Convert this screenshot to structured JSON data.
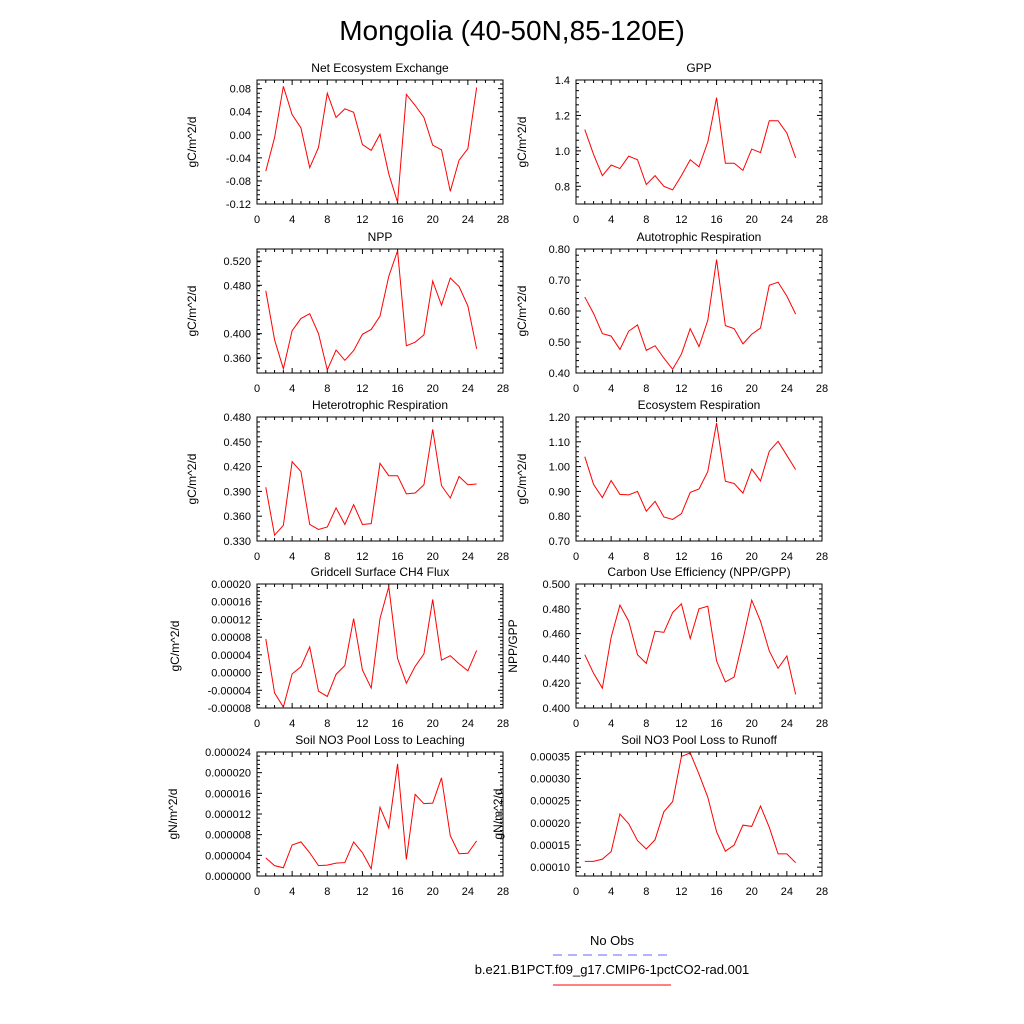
{
  "page": {
    "title": "Mongolia (40-50N,85-120E)"
  },
  "legend": {
    "items": [
      {
        "label": "No Obs",
        "color": "#6666ff",
        "dash": true
      },
      {
        "label": "b.e21.B1PCT.f09_g17.CMIP6-1pctCO2-rad.001",
        "color": "#ff0000",
        "dash": false
      }
    ]
  },
  "colors": {
    "series": "#ff0000",
    "obs": "#6666ff"
  },
  "chart_data": [
    {
      "type": "line",
      "title": "Net Ecosystem Exchange",
      "ylabel": "gC/m^2/d",
      "xlim": [
        0,
        28
      ],
      "ylim": [
        -0.12,
        0.095
      ],
      "xticks": [
        0,
        4,
        8,
        12,
        16,
        20,
        24,
        28
      ],
      "xtick_labels": [
        "0",
        "4",
        "8",
        "12",
        "16",
        "20",
        "24",
        "28"
      ],
      "yticks": [
        -0.12,
        -0.08,
        -0.04,
        0.0,
        0.04,
        0.08
      ],
      "ytick_labels": [
        "-0.12",
        "-0.08",
        "-0.04",
        "0.00",
        "0.04",
        "0.08"
      ],
      "x": [
        1,
        2,
        3,
        4,
        5,
        6,
        7,
        8,
        9,
        10,
        11,
        12,
        13,
        14,
        15,
        16,
        17,
        18,
        19,
        20,
        21,
        22,
        23,
        24,
        25
      ],
      "series": [
        {
          "values": [
            -0.063,
            -0.005,
            0.084,
            0.035,
            0.012,
            -0.057,
            -0.022,
            0.072,
            0.03,
            0.045,
            0.039,
            -0.017,
            -0.027,
            0.001,
            -0.068,
            -0.117,
            0.07,
            0.051,
            0.03,
            -0.018,
            -0.026,
            -0.098,
            -0.044,
            -0.024,
            0.082
          ]
        }
      ]
    },
    {
      "type": "line",
      "title": "GPP",
      "ylabel": "gC/m^2/d",
      "xlim": [
        0,
        28
      ],
      "ylim": [
        0.7,
        1.4
      ],
      "xticks": [
        0,
        4,
        8,
        12,
        16,
        20,
        24,
        28
      ],
      "xtick_labels": [
        "0",
        "4",
        "8",
        "12",
        "16",
        "20",
        "24",
        "28"
      ],
      "yticks": [
        0.8,
        1.0,
        1.2,
        1.4
      ],
      "ytick_labels": [
        "0.8",
        "1.0",
        "1.2",
        "1.4"
      ],
      "x": [
        1,
        2,
        3,
        4,
        5,
        6,
        7,
        8,
        9,
        10,
        11,
        12,
        13,
        14,
        15,
        16,
        17,
        18,
        19,
        20,
        21,
        22,
        23,
        24,
        25
      ],
      "series": [
        {
          "values": [
            1.12,
            0.98,
            0.86,
            0.92,
            0.9,
            0.97,
            0.95,
            0.81,
            0.86,
            0.8,
            0.78,
            0.86,
            0.95,
            0.91,
            1.05,
            1.3,
            0.93,
            0.93,
            0.89,
            1.01,
            0.99,
            1.17,
            1.17,
            1.1,
            0.96
          ]
        }
      ]
    },
    {
      "type": "line",
      "title": "NPP",
      "ylabel": "gC/m^2/d",
      "xlim": [
        0,
        28
      ],
      "ylim": [
        0.335,
        0.54
      ],
      "xticks": [
        0,
        4,
        8,
        12,
        16,
        20,
        24,
        28
      ],
      "xtick_labels": [
        "0",
        "4",
        "8",
        "12",
        "16",
        "20",
        "24",
        "28"
      ],
      "yticks": [
        0.36,
        0.4,
        0.48,
        0.52
      ],
      "ytick_labels": [
        "0.360",
        "0.400",
        "0.480",
        "0.520"
      ],
      "x": [
        1,
        2,
        3,
        4,
        5,
        6,
        7,
        8,
        9,
        10,
        11,
        12,
        13,
        14,
        15,
        16,
        17,
        18,
        19,
        20,
        21,
        22,
        23,
        24,
        25
      ],
      "series": [
        {
          "values": [
            0.471,
            0.39,
            0.342,
            0.405,
            0.425,
            0.433,
            0.4,
            0.34,
            0.373,
            0.356,
            0.372,
            0.399,
            0.407,
            0.429,
            0.495,
            0.537,
            0.38,
            0.386,
            0.398,
            0.487,
            0.447,
            0.492,
            0.478,
            0.446,
            0.375
          ]
        }
      ]
    },
    {
      "type": "line",
      "title": "Autotrophic Respiration",
      "ylabel": "gC/m^2/d",
      "xlim": [
        0,
        28
      ],
      "ylim": [
        0.4,
        0.8
      ],
      "xticks": [
        0,
        4,
        8,
        12,
        16,
        20,
        24,
        28
      ],
      "xtick_labels": [
        "0",
        "4",
        "8",
        "12",
        "16",
        "20",
        "24",
        "28"
      ],
      "yticks": [
        0.4,
        0.5,
        0.6,
        0.7,
        0.8
      ],
      "ytick_labels": [
        "0.40",
        "0.50",
        "0.60",
        "0.70",
        "0.80"
      ],
      "x": [
        1,
        2,
        3,
        4,
        5,
        6,
        7,
        8,
        9,
        10,
        11,
        12,
        13,
        14,
        15,
        16,
        17,
        18,
        19,
        20,
        21,
        22,
        23,
        24,
        25
      ],
      "series": [
        {
          "values": [
            0.645,
            0.592,
            0.527,
            0.519,
            0.476,
            0.535,
            0.555,
            0.473,
            0.488,
            0.448,
            0.412,
            0.461,
            0.543,
            0.485,
            0.57,
            0.766,
            0.553,
            0.543,
            0.494,
            0.525,
            0.545,
            0.683,
            0.693,
            0.648,
            0.59
          ]
        }
      ]
    },
    {
      "type": "line",
      "title": "Heterotrophic Respiration",
      "ylabel": "gC/m^2/d",
      "xlim": [
        0,
        28
      ],
      "ylim": [
        0.33,
        0.48
      ],
      "xticks": [
        0,
        4,
        8,
        12,
        16,
        20,
        24,
        28
      ],
      "xtick_labels": [
        "0",
        "4",
        "8",
        "12",
        "16",
        "20",
        "24",
        "28"
      ],
      "yticks": [
        0.33,
        0.36,
        0.39,
        0.42,
        0.45,
        0.48
      ],
      "ytick_labels": [
        "0.330",
        "0.360",
        "0.390",
        "0.420",
        "0.450",
        "0.480"
      ],
      "x": [
        1,
        2,
        3,
        4,
        5,
        6,
        7,
        8,
        9,
        10,
        11,
        12,
        13,
        14,
        15,
        16,
        17,
        18,
        19,
        20,
        21,
        22,
        23,
        24,
        25
      ],
      "series": [
        {
          "values": [
            0.395,
            0.337,
            0.349,
            0.426,
            0.414,
            0.35,
            0.344,
            0.347,
            0.37,
            0.35,
            0.374,
            0.35,
            0.351,
            0.424,
            0.409,
            0.409,
            0.387,
            0.388,
            0.398,
            0.465,
            0.397,
            0.382,
            0.408,
            0.398,
            0.399
          ]
        }
      ]
    },
    {
      "type": "line",
      "title": "Ecosystem Respiration",
      "ylabel": "gC/m^2/d",
      "xlim": [
        0,
        28
      ],
      "ylim": [
        0.7,
        1.2
      ],
      "xticks": [
        0,
        4,
        8,
        12,
        16,
        20,
        24,
        28
      ],
      "xtick_labels": [
        "0",
        "4",
        "8",
        "12",
        "16",
        "20",
        "24",
        "28"
      ],
      "yticks": [
        0.7,
        0.8,
        0.9,
        1.0,
        1.1,
        1.2
      ],
      "ytick_labels": [
        "0.70",
        "0.80",
        "0.90",
        "1.00",
        "1.10",
        "1.20"
      ],
      "x": [
        1,
        2,
        3,
        4,
        5,
        6,
        7,
        8,
        9,
        10,
        11,
        12,
        13,
        14,
        15,
        16,
        17,
        18,
        19,
        20,
        21,
        22,
        23,
        24,
        25
      ],
      "series": [
        {
          "values": [
            1.04,
            0.928,
            0.875,
            0.944,
            0.888,
            0.886,
            0.9,
            0.82,
            0.86,
            0.797,
            0.787,
            0.81,
            0.896,
            0.91,
            0.98,
            1.176,
            0.941,
            0.932,
            0.893,
            0.99,
            0.942,
            1.062,
            1.102,
            1.045,
            0.988
          ]
        }
      ]
    },
    {
      "type": "line",
      "title": "Gridcell Surface CH4 Flux",
      "ylabel": "gC/m^2/d",
      "xlim": [
        0,
        28
      ],
      "ylim": [
        -8e-05,
        0.0002
      ],
      "xticks": [
        0,
        4,
        8,
        12,
        16,
        20,
        24,
        28
      ],
      "xtick_labels": [
        "0",
        "4",
        "8",
        "12",
        "16",
        "20",
        "24",
        "28"
      ],
      "yticks": [
        -8e-05,
        -4e-05,
        0.0,
        4e-05,
        8e-05,
        0.00012,
        0.00016,
        0.0002
      ],
      "ytick_labels": [
        "-0.00008",
        "-0.00004",
        "0.00000",
        "0.00004",
        "0.00008",
        "0.00012",
        "0.00016",
        "0.00020"
      ],
      "x": [
        1,
        2,
        3,
        4,
        5,
        6,
        7,
        8,
        9,
        10,
        11,
        12,
        13,
        14,
        15,
        16,
        17,
        18,
        19,
        20,
        21,
        22,
        23,
        24,
        25
      ],
      "series": [
        {
          "values": [
            7.6e-05,
            -4.6e-05,
            -7.8e-05,
            -3e-06,
            1.3e-05,
            5.8e-05,
            -4.2e-05,
            -5.4e-05,
            -4e-06,
            1.6e-05,
            0.000122,
            6e-06,
            -3.5e-05,
            0.000122,
            0.000194,
            3.2e-05,
            -2.4e-05,
            1.4e-05,
            4.2e-05,
            0.000165,
            2.8e-05,
            3.8e-05,
            2e-05,
            4e-06,
            5e-05
          ]
        }
      ]
    },
    {
      "type": "line",
      "title": "Carbon Use Efficiency (NPP/GPP)",
      "ylabel": "NPP/GPP",
      "xlim": [
        0,
        28
      ],
      "ylim": [
        0.4,
        0.5
      ],
      "xticks": [
        0,
        4,
        8,
        12,
        16,
        20,
        24,
        28
      ],
      "xtick_labels": [
        "0",
        "4",
        "8",
        "12",
        "16",
        "20",
        "24",
        "28"
      ],
      "yticks": [
        0.4,
        0.42,
        0.44,
        0.46,
        0.48,
        0.5
      ],
      "ytick_labels": [
        "0.400",
        "0.420",
        "0.440",
        "0.460",
        "0.480",
        "0.500"
      ],
      "x": [
        1,
        2,
        3,
        4,
        5,
        6,
        7,
        8,
        9,
        10,
        11,
        12,
        13,
        14,
        15,
        16,
        17,
        18,
        19,
        20,
        21,
        22,
        23,
        24,
        25
      ],
      "series": [
        {
          "values": [
            0.443,
            0.428,
            0.416,
            0.457,
            0.483,
            0.47,
            0.443,
            0.436,
            0.462,
            0.461,
            0.477,
            0.484,
            0.456,
            0.48,
            0.482,
            0.438,
            0.421,
            0.425,
            0.455,
            0.487,
            0.47,
            0.446,
            0.432,
            0.442,
            0.411
          ]
        }
      ]
    },
    {
      "type": "line",
      "title": "Soil NO3 Pool Loss to Leaching",
      "ylabel": "gN/m^2/d",
      "xlim": [
        0,
        28
      ],
      "ylim": [
        0.0,
        2.4e-05
      ],
      "xticks": [
        0,
        4,
        8,
        12,
        16,
        20,
        24,
        28
      ],
      "xtick_labels": [
        "0",
        "4",
        "8",
        "12",
        "16",
        "20",
        "24",
        "28"
      ],
      "yticks": [
        0.0,
        4e-06,
        8e-06,
        1.2e-05,
        1.6e-05,
        2e-05,
        2.4e-05
      ],
      "ytick_labels": [
        "0.000000",
        "0.000004",
        "0.000008",
        "0.000012",
        "0.000016",
        "0.000020",
        "0.000024"
      ],
      "x": [
        1,
        2,
        3,
        4,
        5,
        6,
        7,
        8,
        9,
        10,
        11,
        12,
        13,
        14,
        15,
        16,
        17,
        18,
        19,
        20,
        21,
        22,
        23,
        24,
        25
      ],
      "series": [
        {
          "values": [
            3.5e-06,
            2e-06,
            1.6e-06,
            6e-06,
            6.6e-06,
            4.5e-06,
            2e-06,
            2.1e-06,
            2.5e-06,
            2.6e-06,
            6.6e-06,
            4.5e-06,
            1.4e-06,
            1.33e-05,
            9.3e-06,
            2.17e-05,
            3.2e-06,
            1.58e-05,
            1.4e-05,
            1.41e-05,
            1.9e-05,
            7.8e-06,
            4.3e-06,
            4.4e-06,
            6.8e-06
          ]
        }
      ]
    },
    {
      "type": "line",
      "title": "Soil NO3 Pool Loss to Runoff",
      "ylabel": "gN/m^2/d",
      "xlim": [
        0,
        28
      ],
      "ylim": [
        8e-05,
        0.00036
      ],
      "xticks": [
        0,
        4,
        8,
        12,
        16,
        20,
        24,
        28
      ],
      "xtick_labels": [
        "0",
        "4",
        "8",
        "12",
        "16",
        "20",
        "24",
        "28"
      ],
      "yticks": [
        0.0001,
        0.00015,
        0.0002,
        0.00025,
        0.0003,
        0.00035
      ],
      "ytick_labels": [
        "0.00010",
        "0.00015",
        "0.00020",
        "0.00025",
        "0.00030",
        "0.00035"
      ],
      "x": [
        1,
        2,
        3,
        4,
        5,
        6,
        7,
        8,
        9,
        10,
        11,
        12,
        13,
        14,
        15,
        16,
        17,
        18,
        19,
        20,
        21,
        22,
        23,
        24,
        25
      ],
      "series": [
        {
          "values": [
            0.000113,
            0.000113,
            0.000118,
            0.000135,
            0.00022,
            0.000198,
            0.00016,
            0.000141,
            0.000162,
            0.000225,
            0.000248,
            0.00035,
            0.000358,
            0.00031,
            0.000258,
            0.00018,
            0.000136,
            0.00015,
            0.000195,
            0.000192,
            0.000238,
            0.00019,
            0.00013,
            0.00013,
            0.00011
          ]
        }
      ]
    }
  ]
}
